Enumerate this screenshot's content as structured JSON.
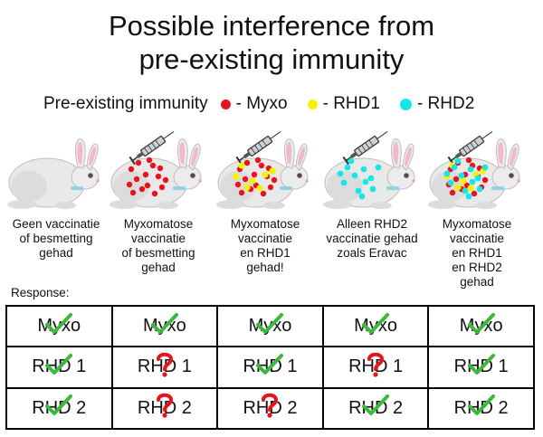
{
  "title_line1": "Possible interference from",
  "title_line2": "pre-existing immunity",
  "legend": {
    "prefix": "Pre-existing immunity",
    "items": [
      {
        "label": "- Myxo",
        "color": "#e8141c"
      },
      {
        "label": "- RHD1",
        "color": "#f7f200"
      },
      {
        "label": "- RHD2",
        "color": "#16e6e6"
      }
    ]
  },
  "columns": [
    {
      "caption": [
        "Geen vaccinatie",
        "of besmetting",
        "gehad"
      ],
      "syringe": false,
      "dots": []
    },
    {
      "caption": [
        "Myxomatose",
        "vaccinatie",
        "of besmetting",
        "gehad"
      ],
      "syringe": true,
      "dots": [
        "myxo"
      ]
    },
    {
      "caption": [
        "Myxomatose",
        "vaccinatie",
        "en RHD1",
        "gehad!"
      ],
      "syringe": true,
      "dots": [
        "myxo",
        "rhd1"
      ]
    },
    {
      "caption": [
        "Alleen RHD2",
        "vaccinatie gehad",
        "zoals Eravac"
      ],
      "syringe": true,
      "dots": [
        "rhd2"
      ]
    },
    {
      "caption": [
        "Myxomatose",
        "vaccinatie",
        "en RHD1",
        "en RHD2",
        "gehad"
      ],
      "syringe": true,
      "dots": [
        "myxo",
        "rhd1",
        "rhd2"
      ]
    }
  ],
  "response_label": "Response:",
  "rows": [
    {
      "label": "Myxo",
      "marks": [
        "check",
        "check",
        "check",
        "check",
        "check"
      ]
    },
    {
      "label": "RHD 1",
      "marks": [
        "check",
        "question",
        "check",
        "question",
        "check"
      ]
    },
    {
      "label": "RHD 2",
      "marks": [
        "check",
        "question",
        "question",
        "check",
        "check"
      ]
    }
  ],
  "icons": {
    "check": "green-checkmark-icon",
    "question": "red-question-mark-icon"
  },
  "colors": {
    "check": "#3cb83c",
    "question": "#e8141c"
  }
}
